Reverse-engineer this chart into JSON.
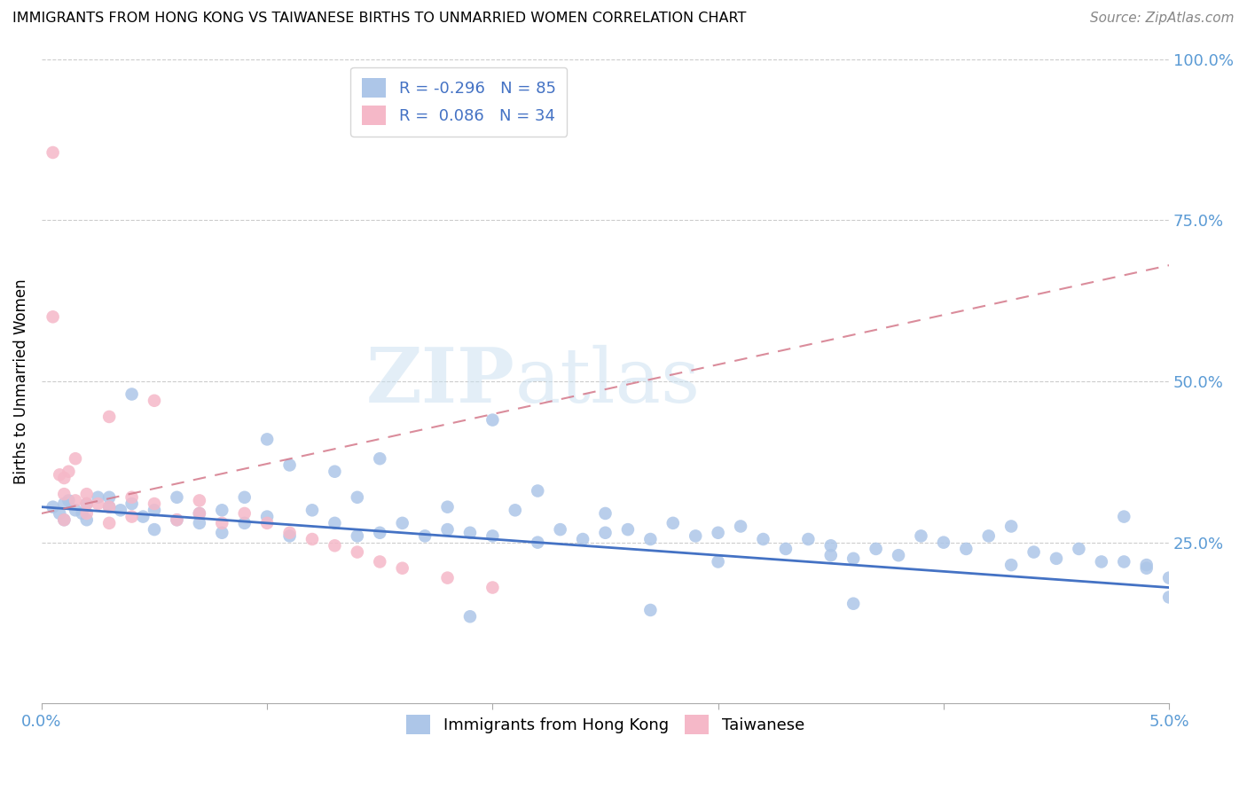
{
  "title": "IMMIGRANTS FROM HONG KONG VS TAIWANESE BIRTHS TO UNMARRIED WOMEN CORRELATION CHART",
  "source": "Source: ZipAtlas.com",
  "ylabel": "Births to Unmarried Women",
  "legend_label1": "Immigrants from Hong Kong",
  "legend_label2": "Taiwanese",
  "R1": -0.296,
  "N1": 85,
  "R2": 0.086,
  "N2": 34,
  "color_blue": "#adc6e8",
  "color_pink": "#f5b8c8",
  "color_blue_line": "#4472c4",
  "color_pink_line": "#d4788a",
  "watermark": "ZIPatlas",
  "blue_trend": [
    0.305,
    0.18
  ],
  "pink_trend": [
    0.295,
    0.68
  ],
  "xlim": [
    0,
    0.05
  ],
  "ylim": [
    0,
    1.0
  ],
  "blue_x": [
    0.0005,
    0.001,
    0.0008,
    0.0015,
    0.001,
    0.0012,
    0.0018,
    0.002,
    0.0025,
    0.002,
    0.003,
    0.003,
    0.0035,
    0.004,
    0.004,
    0.0045,
    0.005,
    0.005,
    0.006,
    0.006,
    0.007,
    0.007,
    0.008,
    0.008,
    0.009,
    0.009,
    0.01,
    0.01,
    0.011,
    0.011,
    0.012,
    0.013,
    0.013,
    0.014,
    0.014,
    0.015,
    0.015,
    0.016,
    0.017,
    0.018,
    0.018,
    0.019,
    0.02,
    0.02,
    0.021,
    0.022,
    0.022,
    0.023,
    0.024,
    0.025,
    0.025,
    0.026,
    0.027,
    0.028,
    0.029,
    0.03,
    0.03,
    0.031,
    0.032,
    0.033,
    0.034,
    0.035,
    0.035,
    0.036,
    0.037,
    0.038,
    0.039,
    0.04,
    0.041,
    0.042,
    0.043,
    0.044,
    0.045,
    0.046,
    0.047,
    0.048,
    0.048,
    0.049,
    0.049,
    0.05,
    0.05,
    0.043,
    0.036,
    0.027,
    0.019
  ],
  "blue_y": [
    0.305,
    0.31,
    0.295,
    0.3,
    0.285,
    0.315,
    0.295,
    0.31,
    0.32,
    0.285,
    0.305,
    0.32,
    0.3,
    0.48,
    0.31,
    0.29,
    0.3,
    0.27,
    0.285,
    0.32,
    0.295,
    0.28,
    0.3,
    0.265,
    0.32,
    0.28,
    0.41,
    0.29,
    0.37,
    0.26,
    0.3,
    0.28,
    0.36,
    0.26,
    0.32,
    0.38,
    0.265,
    0.28,
    0.26,
    0.305,
    0.27,
    0.265,
    0.44,
    0.26,
    0.3,
    0.33,
    0.25,
    0.27,
    0.255,
    0.295,
    0.265,
    0.27,
    0.255,
    0.28,
    0.26,
    0.265,
    0.22,
    0.275,
    0.255,
    0.24,
    0.255,
    0.23,
    0.245,
    0.225,
    0.24,
    0.23,
    0.26,
    0.25,
    0.24,
    0.26,
    0.215,
    0.235,
    0.225,
    0.24,
    0.22,
    0.22,
    0.29,
    0.215,
    0.21,
    0.195,
    0.165,
    0.275,
    0.155,
    0.145,
    0.135
  ],
  "pink_x": [
    0.0005,
    0.0008,
    0.001,
    0.001,
    0.0012,
    0.0015,
    0.0015,
    0.002,
    0.002,
    0.002,
    0.0025,
    0.003,
    0.003,
    0.003,
    0.004,
    0.004,
    0.005,
    0.005,
    0.006,
    0.007,
    0.007,
    0.008,
    0.009,
    0.01,
    0.011,
    0.012,
    0.013,
    0.014,
    0.015,
    0.016,
    0.018,
    0.02,
    0.0005,
    0.001
  ],
  "pink_y": [
    0.855,
    0.355,
    0.325,
    0.35,
    0.36,
    0.315,
    0.38,
    0.325,
    0.31,
    0.295,
    0.31,
    0.305,
    0.28,
    0.445,
    0.32,
    0.29,
    0.47,
    0.31,
    0.285,
    0.295,
    0.315,
    0.28,
    0.295,
    0.28,
    0.265,
    0.255,
    0.245,
    0.235,
    0.22,
    0.21,
    0.195,
    0.18,
    0.6,
    0.285
  ]
}
